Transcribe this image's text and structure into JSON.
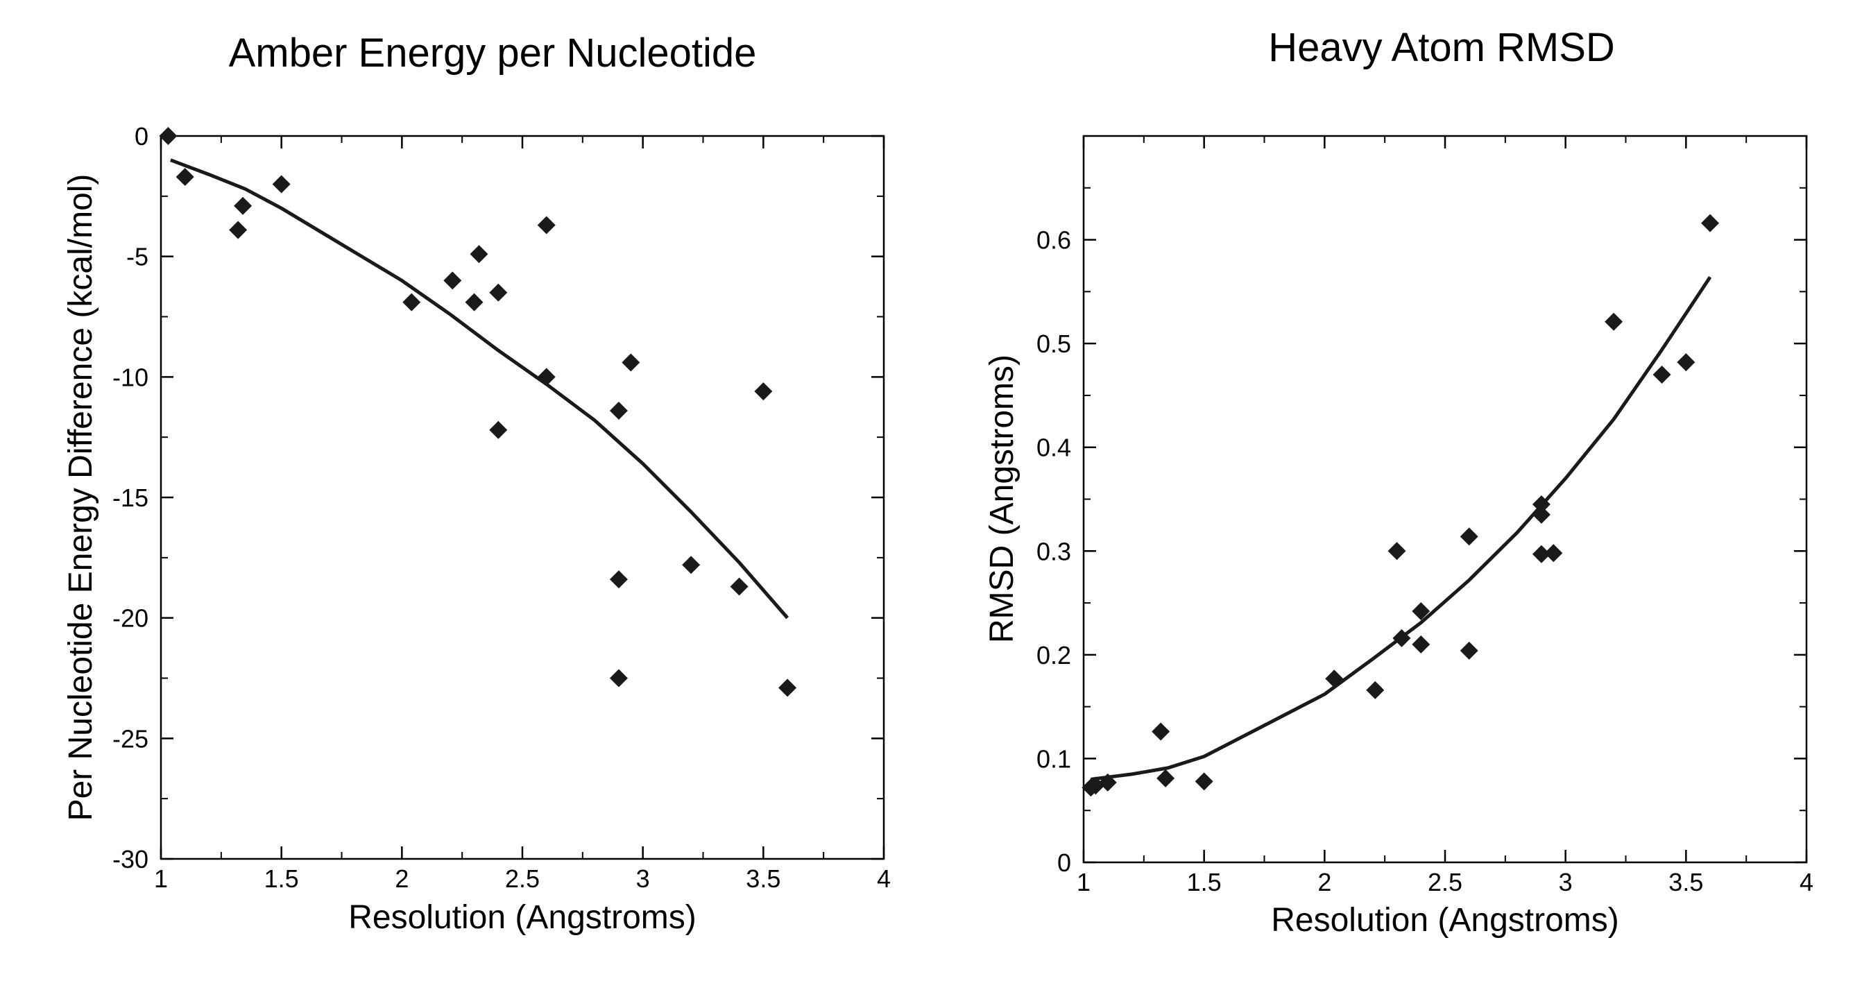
{
  "colors": {
    "marker": "#1a1a1a",
    "fit_line": "#1a1a1a",
    "frame": "#000000",
    "background": "#ffffff"
  },
  "chart_data": [
    {
      "type": "scatter",
      "title": "Amber Energy per Nucleotide",
      "xlabel": "Resolution (Angstroms)",
      "ylabel": "Per Nucleotide Energy Difference (kcal/mol)",
      "xlim": [
        1,
        4
      ],
      "ylim": [
        -30,
        0
      ],
      "xticks": [
        1,
        1.5,
        2,
        2.5,
        3,
        3.5,
        4
      ],
      "xtick_labels": [
        "1",
        "1.5",
        "2",
        "2.5",
        "3",
        "3.5",
        "4"
      ],
      "yticks": [
        0,
        -5,
        -10,
        -15,
        -20,
        -25,
        -30
      ],
      "ytick_labels": [
        "0",
        "-5",
        "-10",
        "-15",
        "-20",
        "-25",
        "-30"
      ],
      "x_minor_step": 0.25,
      "y_minor_step": 2.5,
      "grid": false,
      "series": [
        {
          "name": "data",
          "kind": "scatter",
          "marker": "diamond",
          "x": [
            1.03,
            1.1,
            1.32,
            1.34,
            1.5,
            2.04,
            2.21,
            2.3,
            2.32,
            2.4,
            2.4,
            2.6,
            2.6,
            2.9,
            2.9,
            2.9,
            2.95,
            3.2,
            3.4,
            3.5,
            3.6
          ],
          "y": [
            0.0,
            -1.7,
            -3.9,
            -2.9,
            -2.0,
            -6.9,
            -6.0,
            -6.9,
            -4.9,
            -6.5,
            -12.2,
            -3.7,
            -10.0,
            -11.4,
            -18.4,
            -22.5,
            -9.4,
            -17.8,
            -18.7,
            -10.6,
            -22.9
          ]
        },
        {
          "name": "fit",
          "kind": "line",
          "x": [
            1.04,
            1.2,
            1.35,
            1.5,
            1.75,
            2.0,
            2.2,
            2.4,
            2.6,
            2.8,
            3.0,
            3.2,
            3.4,
            3.6
          ],
          "y": [
            -1.0,
            -1.6,
            -2.2,
            -3.0,
            -4.5,
            -6.0,
            -7.4,
            -8.9,
            -10.3,
            -11.8,
            -13.6,
            -15.6,
            -17.7,
            -20.0
          ]
        }
      ]
    },
    {
      "type": "scatter",
      "title": "Heavy Atom RMSD",
      "xlabel": "Resolution (Angstroms)",
      "ylabel": "RMSD (Angstroms)",
      "xlim": [
        1,
        4
      ],
      "ylim": [
        0,
        0.7
      ],
      "xticks": [
        1,
        1.5,
        2,
        2.5,
        3,
        3.5,
        4
      ],
      "xtick_labels": [
        "1",
        "1.5",
        "2",
        "2.5",
        "3",
        "3.5",
        "4"
      ],
      "yticks": [
        0,
        0.1,
        0.2,
        0.3,
        0.4,
        0.5,
        0.6
      ],
      "ytick_labels": [
        "0",
        "0.1",
        "0.2",
        "0.3",
        "0.4",
        "0.5",
        "0.6"
      ],
      "x_minor_step": 0.25,
      "y_minor_step": 0.05,
      "grid": false,
      "series": [
        {
          "name": "data",
          "kind": "scatter",
          "marker": "diamond",
          "x": [
            1.03,
            1.05,
            1.1,
            1.32,
            1.34,
            1.5,
            2.04,
            2.21,
            2.3,
            2.32,
            2.4,
            2.4,
            2.6,
            2.6,
            2.9,
            2.9,
            2.9,
            2.95,
            3.2,
            3.4,
            3.5,
            3.6
          ],
          "y": [
            0.072,
            0.074,
            0.077,
            0.126,
            0.081,
            0.078,
            0.177,
            0.166,
            0.3,
            0.216,
            0.242,
            0.21,
            0.314,
            0.204,
            0.345,
            0.335,
            0.297,
            0.298,
            0.521,
            0.47,
            0.482,
            0.616
          ]
        },
        {
          "name": "fit",
          "kind": "line",
          "x": [
            1.03,
            1.2,
            1.35,
            1.5,
            1.75,
            2.0,
            2.2,
            2.4,
            2.6,
            2.8,
            3.0,
            3.2,
            3.4,
            3.6
          ],
          "y": [
            0.08,
            0.085,
            0.091,
            0.102,
            0.132,
            0.162,
            0.196,
            0.231,
            0.272,
            0.318,
            0.37,
            0.427,
            0.494,
            0.564
          ]
        }
      ]
    }
  ]
}
